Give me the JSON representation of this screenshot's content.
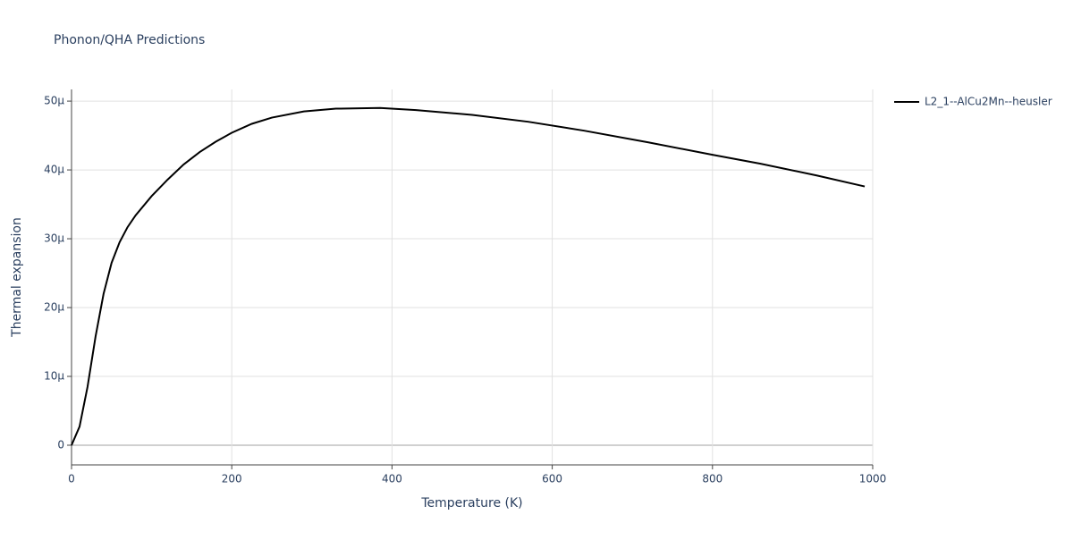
{
  "chart_data": {
    "type": "line",
    "title": "Phonon/QHA Predictions",
    "x_label": "Temperature (K)",
    "y_label": "Thermal expansion",
    "x": [
      0,
      10,
      20,
      30,
      40,
      50,
      60,
      70,
      80,
      100,
      120,
      140,
      160,
      180,
      200,
      225,
      250,
      290,
      330,
      385,
      430,
      500,
      570,
      640,
      720,
      800,
      860,
      930,
      990
    ],
    "series": [
      {
        "name": "L2_1--AlCu2Mn--heusler",
        "color": "#000000",
        "values": [
          0,
          2.7e-06,
          8.5e-06,
          1.58e-05,
          2.2e-05,
          2.65e-05,
          2.95e-05,
          3.17e-05,
          3.34e-05,
          3.62e-05,
          3.86e-05,
          4.08e-05,
          4.26e-05,
          4.41e-05,
          4.54e-05,
          4.67e-05,
          4.76e-05,
          4.85e-05,
          4.89e-05,
          4.9e-05,
          4.87e-05,
          4.8e-05,
          4.7e-05,
          4.57e-05,
          4.4e-05,
          4.22e-05,
          4.09e-05,
          3.92e-05,
          3.76e-05
        ]
      }
    ],
    "xlim": [
      0,
      1000
    ],
    "xticks": [
      0,
      200,
      400,
      600,
      800,
      1000
    ],
    "ylim": [
      -2.86e-06,
      5.17e-05
    ],
    "yticks": [
      0,
      {
        "value": 1e-05,
        "label": "10μ"
      },
      {
        "value": 2e-05,
        "label": "20μ"
      },
      {
        "value": 3e-05,
        "label": "30μ"
      },
      {
        "value": 4e-05,
        "label": "40μ"
      },
      {
        "value": 5e-05,
        "label": "50μ"
      }
    ],
    "grid": true,
    "legend": "top-right"
  }
}
